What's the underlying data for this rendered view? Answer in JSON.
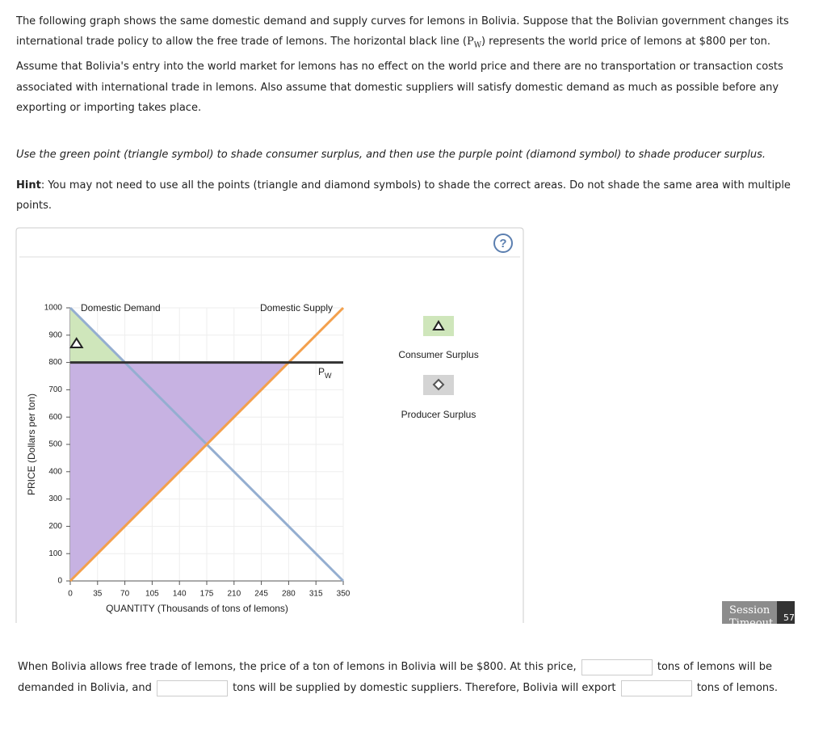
{
  "intro": {
    "before": "The following graph shows the same domestic demand and supply curves for lemons in Bolivia. Suppose that the Bolivian government changes its international trade policy to allow the free trade of lemons. The horizontal black line (",
    "symbol": "P",
    "symbol_sub": "W",
    "after": ") represents the world price of lemons at $800 per ton. Assume that Bolivia's entry into the world market for lemons has no effect on the world price and there are no transportation or transaction costs associated with international trade in lemons. Also assume that domestic suppliers will satisfy domestic demand as much as possible before any exporting or importing takes place."
  },
  "instruction": "Use the green point (triangle symbol) to shade consumer surplus, and then use the purple point (diamond symbol) to shade producer surplus.",
  "hint": {
    "label": "Hint",
    "text": ": You may not need to use all the points (triangle and diamond symbols) to shade the correct areas. Do not shade the same area with multiple points."
  },
  "help_icon": "?",
  "chart_data": {
    "type": "line",
    "y_label": "PRICE (Dollars per ton)",
    "x_label": "QUANTITY (Thousands of tons of lemons)",
    "xlim": [
      0,
      350
    ],
    "ylim": [
      0,
      1000
    ],
    "xticks": [
      0,
      35,
      70,
      105,
      140,
      175,
      210,
      245,
      280,
      315,
      350
    ],
    "yticks": [
      0,
      100,
      200,
      300,
      400,
      500,
      600,
      700,
      800,
      900,
      1000
    ],
    "grid": true,
    "series": [
      {
        "name": "Domestic Demand",
        "color": "#94aed0",
        "x": [
          0,
          350
        ],
        "values": [
          1000,
          0
        ]
      },
      {
        "name": "Domestic Supply",
        "color": "#f3a04c",
        "x": [
          0,
          350
        ],
        "values": [
          0,
          1000
        ]
      }
    ],
    "world_price": {
      "value": 800,
      "label": "P",
      "sub": "W",
      "color": "#333333"
    },
    "areas": [
      {
        "name": "Consumer Surplus",
        "color": "#cfe6bb",
        "x": [
          0,
          0,
          70
        ],
        "values": [
          800,
          1000,
          800
        ],
        "marker_x": 8,
        "marker_y": 870
      },
      {
        "name": "Producer Surplus",
        "color": "#c7b2e2",
        "x": [
          0,
          0,
          280
        ],
        "values": [
          0,
          800,
          800
        ]
      }
    ]
  },
  "session": {
    "label": "Session",
    "sub": "Timeout",
    "count": "57"
  },
  "question": {
    "parts": [
      "When Bolivia allows free trade of lemons, the price of a ton of lemons in Bolivia will be $800. At this price,",
      "tons of lemons will be demanded in Bolivia, and",
      "tons will be supplied by domestic suppliers. Therefore, Bolivia will export",
      "tons of lemons."
    ]
  }
}
